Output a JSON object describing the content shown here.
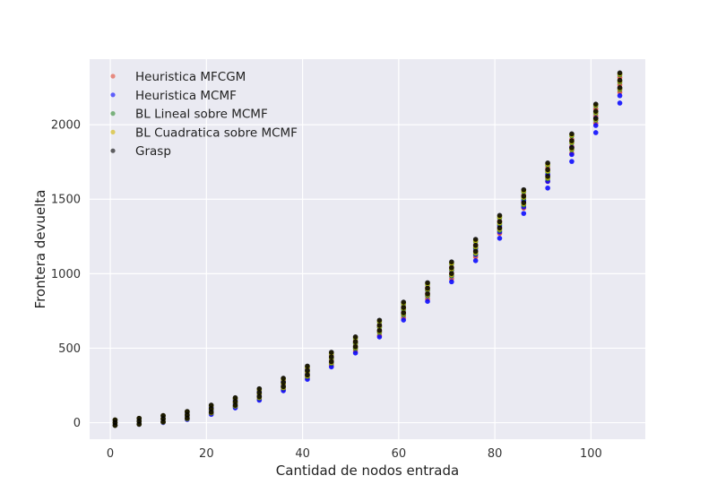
{
  "chart_data": {
    "type": "scatter",
    "xlabel": "Cantidad de nodos entrada",
    "ylabel": "Frontera devuelta",
    "xlim": [
      -4.3,
      111.3
    ],
    "ylim": [
      -111,
      2440
    ],
    "xticks": [
      0,
      20,
      40,
      60,
      80,
      100
    ],
    "yticks": [
      0,
      500,
      1000,
      1500,
      2000
    ],
    "grid": true,
    "legend_position": "top-left",
    "x": [
      1,
      6,
      11,
      16,
      21,
      26,
      31,
      36,
      41,
      46,
      51,
      56,
      61,
      66,
      71,
      76,
      81,
      86,
      91,
      96,
      101,
      106
    ],
    "series": [
      {
        "name": "Heuristica MFCGM",
        "color": "#e24a33",
        "values": [
          0,
          9,
          24,
          46,
          85,
          131,
          186,
          252,
          331,
          418,
          515,
          621,
          741,
          869,
          1005,
          1153,
          1312,
          1484,
          1664,
          1855,
          2058,
          2268
        ]
      },
      {
        "name": "Heuristica MCMF",
        "color": "#0000ff",
        "values": [
          0,
          8,
          22,
          44,
          80,
          125,
          178,
          243,
          321,
          406,
          501,
          610,
          725,
          852,
          985,
          1128,
          1280,
          1448,
          1620,
          1800,
          1995,
          2195
        ]
      },
      {
        "name": "BL Lineal sobre MCMF",
        "color": "#2e8b2e",
        "values": [
          0,
          9,
          25,
          49,
          89,
          136,
          193,
          261,
          340,
          430,
          531,
          640,
          760,
          889,
          1025,
          1175,
          1333,
          1505,
          1683,
          1878,
          2078,
          2285
        ]
      },
      {
        "name": "BL Cuadratica sobre MCMF",
        "color": "#d4b600",
        "values": [
          0,
          9,
          26,
          51,
          91,
          139,
          197,
          265,
          345,
          436,
          538,
          647,
          767,
          896,
          1032,
          1182,
          1341,
          1513,
          1690,
          1885,
          2085,
          2292
        ]
      },
      {
        "name": "Grasp",
        "color": "#000000",
        "values": [
          0,
          10,
          27,
          53,
          94,
          142,
          201,
          270,
          350,
          441,
          543,
          653,
          773,
          902,
          1040,
          1190,
          1349,
          1520,
          1698,
          1892,
          2090,
          2298
        ]
      }
    ]
  }
}
